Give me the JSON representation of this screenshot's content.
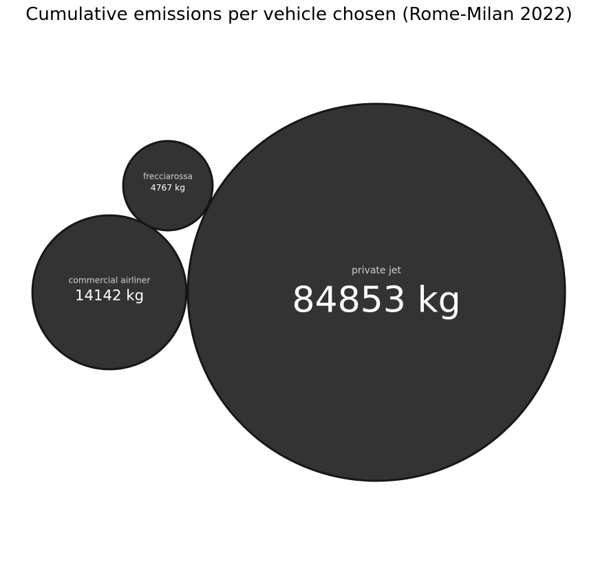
{
  "chart_data": {
    "type": "bubble",
    "title": "Cumulative emissions per vehicle chosen (Rome-Milan 2022)",
    "unit": "kg",
    "items": [
      {
        "label": "private jet",
        "value": 84853,
        "value_text": "84853 kg"
      },
      {
        "label": "commercial airliner",
        "value": 14142,
        "value_text": "14142 kg"
      },
      {
        "label": "frecciarossa",
        "value": 4767,
        "value_text": "4767 kg"
      }
    ]
  },
  "colors": {
    "bubble_fill": "#333333",
    "bubble_stroke": "#161616",
    "label_color": "#cfcfcf",
    "value_color": "#ffffff",
    "title_color": "#000000"
  }
}
